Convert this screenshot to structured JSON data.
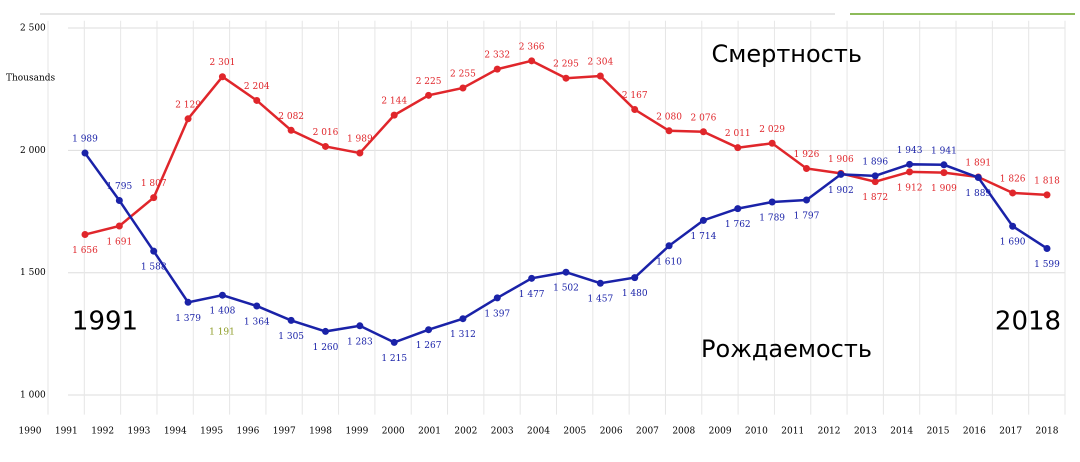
{
  "chart_data": {
    "type": "line",
    "unit_label": "Thousands",
    "categories": [
      "1990",
      "1991",
      "1992",
      "1993",
      "1994",
      "1995",
      "1996",
      "1997",
      "1998",
      "1999",
      "2000",
      "2001",
      "2002",
      "2003",
      "2004",
      "2005",
      "2006",
      "2007",
      "2008",
      "2009",
      "2010",
      "2011",
      "2012",
      "2013",
      "2014",
      "2015",
      "2016",
      "2017",
      "2018"
    ],
    "series": [
      {
        "name": "Смертность",
        "color": "#e0262b",
        "values": [
          1656,
          1691,
          1807,
          2129,
          2301,
          2204,
          2082,
          2016,
          1989,
          2144,
          2225,
          2255,
          2332,
          2366,
          2295,
          2304,
          2167,
          2080,
          2076,
          2011,
          2029,
          1926,
          1906,
          1872,
          1912,
          1909,
          1891,
          1826,
          1818
        ],
        "value_labels": [
          "1 656",
          "1 691",
          "1 807",
          "2 129",
          "2 301",
          "2 204",
          "2 082",
          "2 016",
          "1 989",
          "2 144",
          "2 225",
          "2 255",
          "2 332",
          "2 366",
          "2 295",
          "2 304",
          "2 167",
          "2 080",
          "2 076",
          "2 011",
          "2 029",
          "1 926",
          "1 906",
          "1 872",
          "1 912",
          "1 909",
          "1 891",
          "1 826",
          "1 818"
        ]
      },
      {
        "name": "Рождаемость",
        "color": "#1a22a8",
        "values": [
          1989,
          1795,
          1588,
          1379,
          1408,
          1364,
          1305,
          1260,
          1283,
          1215,
          1267,
          1312,
          1397,
          1477,
          1502,
          1457,
          1480,
          1610,
          1714,
          1762,
          1789,
          1797,
          1902,
          1896,
          1943,
          1941,
          1889,
          1690,
          1599
        ],
        "value_labels": [
          "1 989",
          "1 795",
          "1 588",
          "1 379",
          "1 408",
          "1 364",
          "1 305",
          "1 260",
          "1 283",
          "1 215",
          "1 267",
          "1 312",
          "1 397",
          "1 477",
          "1 502",
          "1 457",
          "1 480",
          "1 610",
          "1 714",
          "1 762",
          "1 789",
          "1 797",
          "1 902",
          "1 896",
          "1 943",
          "1 941",
          "1 889",
          "1 690",
          "1 599"
        ]
      }
    ],
    "annotations": [
      "1991",
      "2018",
      "1 191"
    ],
    "ylim": [
      920,
      2530
    ],
    "yticks": [
      {
        "value": 1000,
        "label": "1 000"
      },
      {
        "value": 1500,
        "label": "1 500"
      },
      {
        "value": 2000,
        "label": "2 000"
      },
      {
        "value": 2500,
        "label": "2 500"
      }
    ],
    "grid": true
  }
}
